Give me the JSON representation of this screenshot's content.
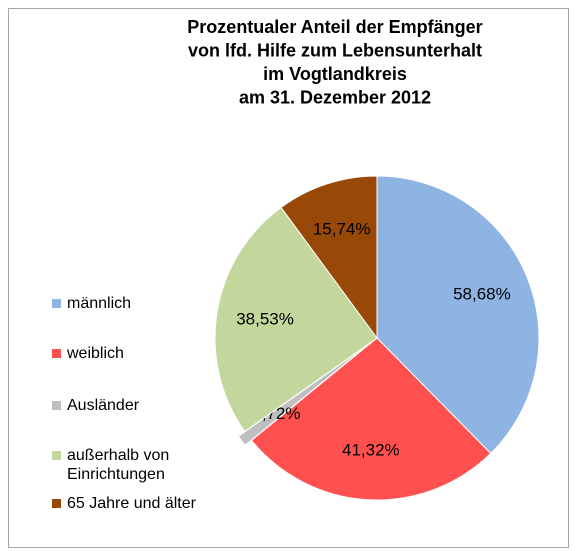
{
  "chart_data": {
    "type": "pie",
    "title": [
      "Prozentualer Anteil der Empfänger",
      "von lfd. Hilfe zum Lebensunterhalt",
      "im Vogtlandkreis",
      "am 31. Dezember 2012"
    ],
    "categories": [
      "männlich",
      "weiblich",
      "Ausländer",
      "außerhalb von Einrichtungen",
      "65 Jahre und älter"
    ],
    "values": [
      58.68,
      41.32,
      1.72,
      38.53,
      15.74
    ],
    "value_labels": [
      "58,68%",
      "41,32%",
      "1,72%",
      "38,53%",
      "15,74%"
    ],
    "colors": [
      "#8db4e2",
      "#ff5050",
      "#bfbfbf",
      "#c3d69b",
      "#984807"
    ],
    "legend": "left"
  }
}
